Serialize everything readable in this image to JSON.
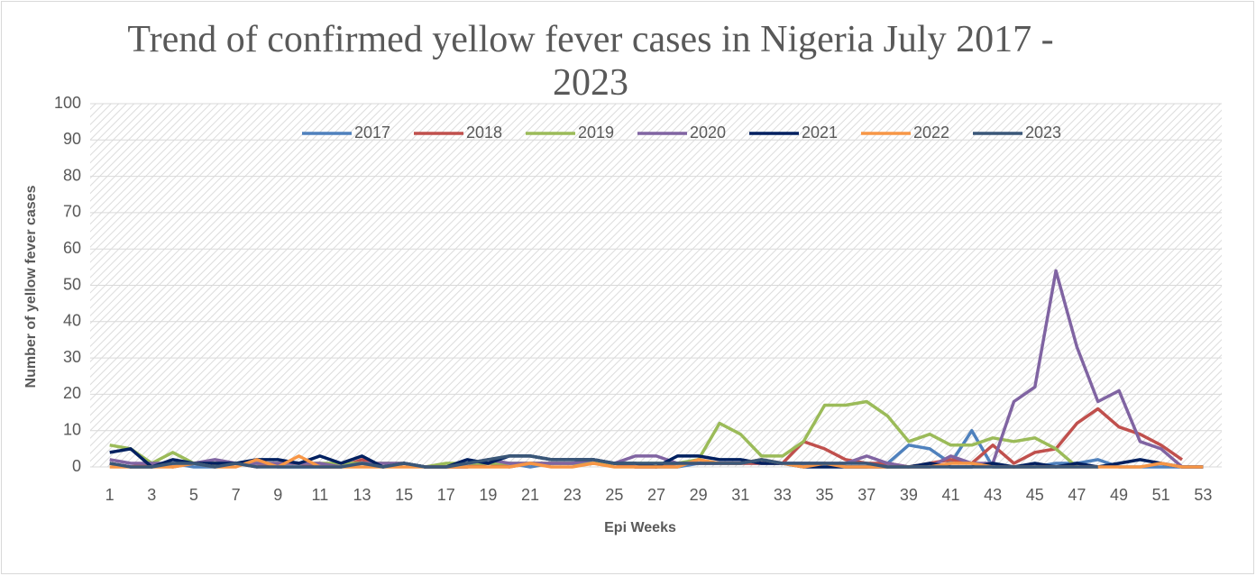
{
  "chart_data": {
    "type": "line",
    "title": "Trend of confirmed yellow fever cases in Nigeria July 2017 - 2023",
    "x_label": "Epi Weeks",
    "y_label": "Number of yellow fever cases",
    "categories": [
      1,
      null,
      3,
      null,
      5,
      null,
      7,
      null,
      9,
      null,
      11,
      null,
      13,
      null,
      15,
      null,
      17,
      null,
      19,
      null,
      21,
      null,
      23,
      null,
      25,
      null,
      27,
      null,
      29,
      null,
      31,
      null,
      33,
      null,
      35,
      null,
      37,
      null,
      39,
      null,
      41,
      null,
      43,
      null,
      45,
      null,
      47,
      null,
      49,
      null,
      51,
      null,
      53
    ],
    "ylim": [
      0,
      100
    ],
    "yticks": [
      0,
      10,
      20,
      30,
      40,
      50,
      60,
      70,
      80,
      90,
      100
    ],
    "grid": true,
    "legend": "top",
    "series": [
      {
        "name": "2017",
        "color": "#4f81bd",
        "values": [
          1,
          0,
          0,
          1,
          0,
          0,
          1,
          1,
          0,
          0,
          0,
          0,
          1,
          0,
          1,
          0,
          0,
          0,
          1,
          1,
          0,
          1,
          1,
          1,
          1,
          0,
          0,
          0,
          1,
          1,
          1,
          1,
          1,
          1,
          1,
          0,
          0,
          1,
          6,
          5,
          1,
          10,
          0,
          0,
          0,
          1,
          1,
          2,
          0,
          0,
          0,
          0,
          0
        ]
      },
      {
        "name": "2018",
        "color": "#c0504d",
        "values": [
          1,
          0,
          1,
          0,
          1,
          1,
          1,
          0,
          1,
          1,
          0,
          0,
          2,
          0,
          1,
          0,
          0,
          0,
          1,
          0,
          1,
          1,
          1,
          1,
          1,
          0,
          0,
          1,
          1,
          1,
          1,
          1,
          1,
          7,
          5,
          2,
          1,
          1,
          0,
          1,
          2,
          1,
          6,
          1,
          4,
          5,
          12,
          16,
          11,
          9,
          6,
          2,
          null
        ]
      },
      {
        "name": "2019",
        "color": "#9bbb59",
        "values": [
          6,
          5,
          1,
          4,
          1,
          1,
          1,
          1,
          1,
          1,
          1,
          1,
          1,
          1,
          1,
          0,
          1,
          1,
          1,
          1,
          1,
          1,
          1,
          1,
          1,
          1,
          1,
          1,
          2,
          12,
          9,
          3,
          3,
          7,
          17,
          17,
          18,
          14,
          7,
          9,
          6,
          6,
          8,
          7,
          8,
          5,
          0,
          null,
          null,
          null,
          null,
          null,
          null
        ]
      },
      {
        "name": "2020",
        "color": "#8064a2",
        "values": [
          2,
          1,
          1,
          1,
          1,
          2,
          1,
          1,
          1,
          1,
          1,
          0,
          1,
          1,
          1,
          0,
          0,
          1,
          2,
          1,
          1,
          1,
          1,
          2,
          1,
          3,
          3,
          1,
          1,
          1,
          1,
          2,
          1,
          1,
          1,
          1,
          3,
          1,
          0,
          0,
          3,
          1,
          1,
          18,
          22,
          54,
          33,
          18,
          21,
          7,
          5,
          0,
          0
        ]
      },
      {
        "name": "2021",
        "color": "#002060",
        "values": [
          4,
          5,
          0,
          2,
          1,
          1,
          1,
          2,
          2,
          1,
          3,
          1,
          3,
          0,
          1,
          0,
          0,
          2,
          1,
          3,
          3,
          2,
          2,
          2,
          1,
          1,
          0,
          3,
          3,
          2,
          2,
          1,
          1,
          0,
          0,
          0,
          0,
          0,
          0,
          1,
          0,
          0,
          1,
          0,
          1,
          0,
          1,
          0,
          1,
          2,
          1,
          0,
          0
        ]
      },
      {
        "name": "2022",
        "color": "#f79646",
        "values": [
          0,
          0,
          0,
          0,
          1,
          0,
          0,
          2,
          0,
          3,
          0,
          0,
          0,
          0,
          0,
          0,
          0,
          0,
          0,
          0,
          1,
          0,
          0,
          1,
          0,
          0,
          0,
          0,
          2,
          1,
          1,
          2,
          1,
          0,
          1,
          0,
          0,
          0,
          0,
          0,
          1,
          1,
          0,
          0,
          0,
          0,
          0,
          0,
          0,
          0,
          1,
          0,
          0
        ]
      },
      {
        "name": "2023",
        "color": "#3a5778",
        "values": [
          1,
          0,
          0,
          1,
          1,
          0,
          1,
          0,
          0,
          0,
          0,
          0,
          1,
          0,
          1,
          0,
          0,
          1,
          2,
          3,
          3,
          2,
          2,
          2,
          1,
          1,
          1,
          1,
          1,
          1,
          1,
          2,
          1,
          1,
          1,
          1,
          1,
          0,
          0,
          0,
          0,
          0,
          0,
          0,
          0,
          0,
          0,
          0,
          null,
          null,
          null,
          null,
          null
        ]
      }
    ]
  }
}
